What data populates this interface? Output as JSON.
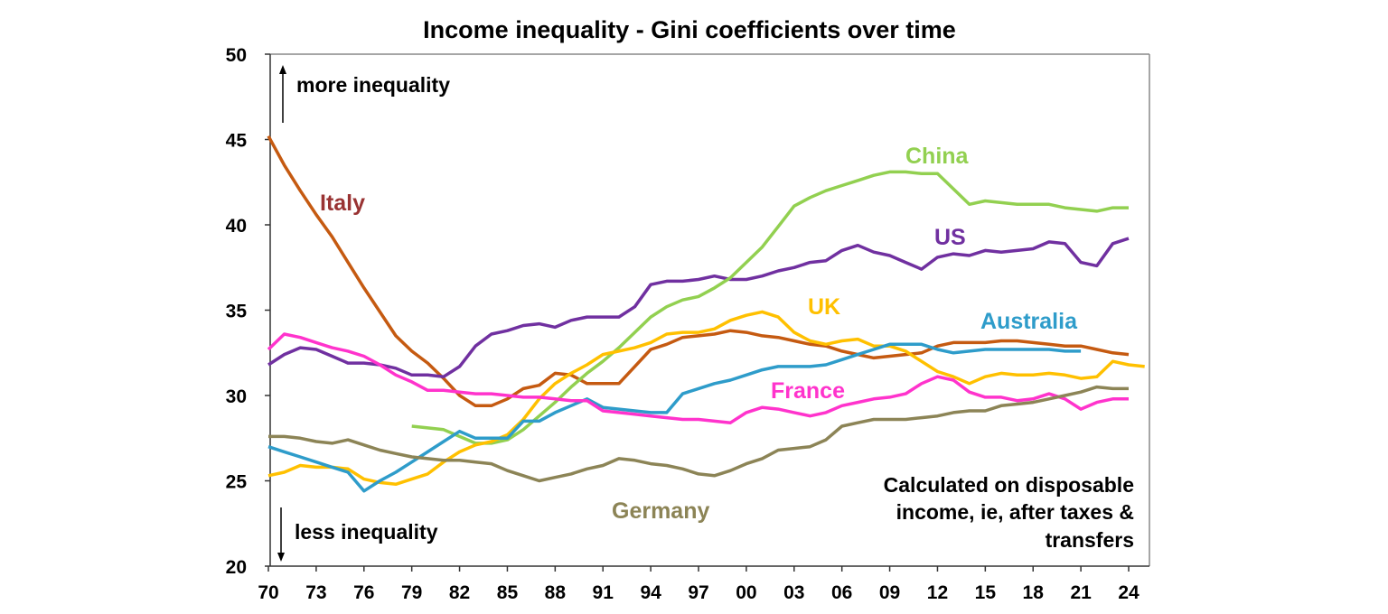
{
  "chart_data": {
    "type": "line",
    "title": "Income inequality - Gini coefficients over time",
    "xlabel": "",
    "ylabel": "",
    "xlim": [
      1970,
      2025
    ],
    "ylim": [
      20,
      50
    ],
    "y_ticks": [
      "20",
      "25",
      "30",
      "35",
      "40",
      "45",
      "50"
    ],
    "x_ticks": [
      "70",
      "73",
      "76",
      "79",
      "82",
      "85",
      "88",
      "91",
      "94",
      "97",
      "00",
      "03",
      "06",
      "09",
      "12",
      "15",
      "18",
      "21",
      "24"
    ],
    "grid": false,
    "annotations": {
      "more": "more inequality",
      "less": "less inequality",
      "note": [
        "Calculated on disposable",
        "income, ie, after taxes &",
        "transfers"
      ]
    },
    "series": [
      {
        "name": "Italy",
        "color": "#C55A11",
        "label_color": "#993333",
        "start": 1970,
        "values": [
          45.2,
          43.5,
          42,
          40.6,
          39.3,
          37.8,
          36.3,
          34.9,
          33.5,
          32.6,
          31.9,
          31,
          30,
          29.4,
          29.4,
          29.8,
          30.4,
          30.6,
          31.3,
          31.2,
          30.7,
          30.7,
          30.7,
          31.7,
          32.7,
          33,
          33.4,
          33.5,
          33.6,
          33.8,
          33.7,
          33.5,
          33.4,
          33.2,
          33,
          32.9,
          32.6,
          32.4,
          32.2,
          32.3,
          32.4,
          32.5,
          32.9,
          33.1,
          33.1,
          33.1,
          33.2,
          33.2,
          33.1,
          33,
          32.9,
          32.9,
          32.7,
          32.5,
          32.4
        ]
      },
      {
        "name": "US",
        "color": "#7030A0",
        "label_color": "#7030A0",
        "start": 1970,
        "values": [
          31.8,
          32.4,
          32.8,
          32.7,
          32.3,
          31.9,
          31.9,
          31.8,
          31.6,
          31.2,
          31.2,
          31.1,
          31.7,
          32.9,
          33.6,
          33.8,
          34.1,
          34.2,
          34,
          34.4,
          34.6,
          34.6,
          34.6,
          35.2,
          36.5,
          36.7,
          36.7,
          36.8,
          37,
          36.8,
          36.8,
          37,
          37.3,
          37.5,
          37.8,
          37.9,
          38.5,
          38.8,
          38.4,
          38.2,
          37.8,
          37.4,
          38.1,
          38.3,
          38.2,
          38.5,
          38.4,
          38.5,
          38.6,
          39,
          38.9,
          37.8,
          37.6,
          38.9,
          39.2
        ]
      },
      {
        "name": "China",
        "color": "#92D050",
        "label_color": "#92D050",
        "start": 1979,
        "values": [
          28.2,
          28.1,
          28,
          27.6,
          27.2,
          27.2,
          27.4,
          28,
          28.8,
          29.6,
          30.5,
          31.3,
          32,
          32.8,
          33.7,
          34.6,
          35.2,
          35.6,
          35.8,
          36.3,
          36.9,
          37.8,
          38.7,
          39.9,
          41.1,
          41.6,
          42,
          42.3,
          42.6,
          42.9,
          43.1,
          43.1,
          43,
          43,
          42.1,
          41.2,
          41.4,
          41.3,
          41.2,
          41.2,
          41.2,
          41,
          40.9,
          40.8,
          41,
          41
        ]
      },
      {
        "name": "UK",
        "color": "#FFC000",
        "label_color": "#FFC000",
        "start": 1970,
        "values": [
          25.3,
          25.5,
          25.9,
          25.8,
          25.8,
          25.7,
          25.1,
          24.9,
          24.8,
          25.1,
          25.4,
          26.1,
          26.7,
          27.1,
          27.3,
          27.7,
          28.6,
          29.8,
          30.7,
          31.3,
          31.8,
          32.4,
          32.6,
          32.8,
          33.1,
          33.6,
          33.7,
          33.7,
          33.9,
          34.4,
          34.7,
          34.9,
          34.6,
          33.7,
          33.2,
          33,
          33.2,
          33.3,
          32.9,
          32.9,
          32.6,
          32,
          31.4,
          31.1,
          30.7,
          31.1,
          31.3,
          31.2,
          31.2,
          31.3,
          31.2,
          31,
          31.1,
          32,
          31.8,
          31.7
        ]
      },
      {
        "name": "Australia",
        "color": "#2E9CCA",
        "label_color": "#2E9CCA",
        "start": 1970,
        "values": [
          27,
          26.7,
          26.4,
          26.1,
          25.8,
          25.5,
          24.4,
          25,
          25.5,
          26.1,
          26.7,
          27.3,
          27.9,
          27.5,
          27.5,
          27.5,
          28.5,
          28.5,
          29,
          29.4,
          29.8,
          29.3,
          29.2,
          29.1,
          29,
          29,
          30.1,
          30.4,
          30.7,
          30.9,
          31.2,
          31.5,
          31.7,
          31.7,
          31.7,
          31.8,
          32.1,
          32.4,
          32.7,
          33,
          33,
          33,
          32.7,
          32.5,
          32.6,
          32.7,
          32.7,
          32.7,
          32.7,
          32.7,
          32.6,
          32.6
        ]
      },
      {
        "name": "France",
        "color": "#FF33CC",
        "label_color": "#FF33CC",
        "start": 1970,
        "values": [
          32.7,
          33.6,
          33.4,
          33.1,
          32.8,
          32.6,
          32.3,
          31.8,
          31.2,
          30.8,
          30.3,
          30.3,
          30.2,
          30.1,
          30.1,
          30,
          29.9,
          29.9,
          29.8,
          29.7,
          29.7,
          29.1,
          29,
          28.9,
          28.8,
          28.7,
          28.6,
          28.6,
          28.5,
          28.4,
          29,
          29.3,
          29.2,
          29,
          28.8,
          29,
          29.4,
          29.6,
          29.8,
          29.9,
          30.1,
          30.7,
          31.1,
          30.9,
          30.2,
          29.9,
          29.9,
          29.7,
          29.8,
          30.1,
          29.8,
          29.2,
          29.6,
          29.8,
          29.8
        ]
      },
      {
        "name": "Germany",
        "color": "#8C8456",
        "label_color": "#8C8456",
        "start": 1970,
        "values": [
          27.6,
          27.6,
          27.5,
          27.3,
          27.2,
          27.4,
          27.1,
          26.8,
          26.6,
          26.4,
          26.3,
          26.2,
          26.2,
          26.1,
          26,
          25.6,
          25.3,
          25,
          25.2,
          25.4,
          25.7,
          25.9,
          26.3,
          26.2,
          26,
          25.9,
          25.7,
          25.4,
          25.3,
          25.6,
          26,
          26.3,
          26.8,
          26.9,
          27,
          27.4,
          28.2,
          28.4,
          28.6,
          28.6,
          28.6,
          28.7,
          28.8,
          29,
          29.1,
          29.1,
          29.4,
          29.5,
          29.6,
          29.8,
          30,
          30.2,
          30.5,
          30.4,
          30.4
        ]
      }
    ]
  }
}
